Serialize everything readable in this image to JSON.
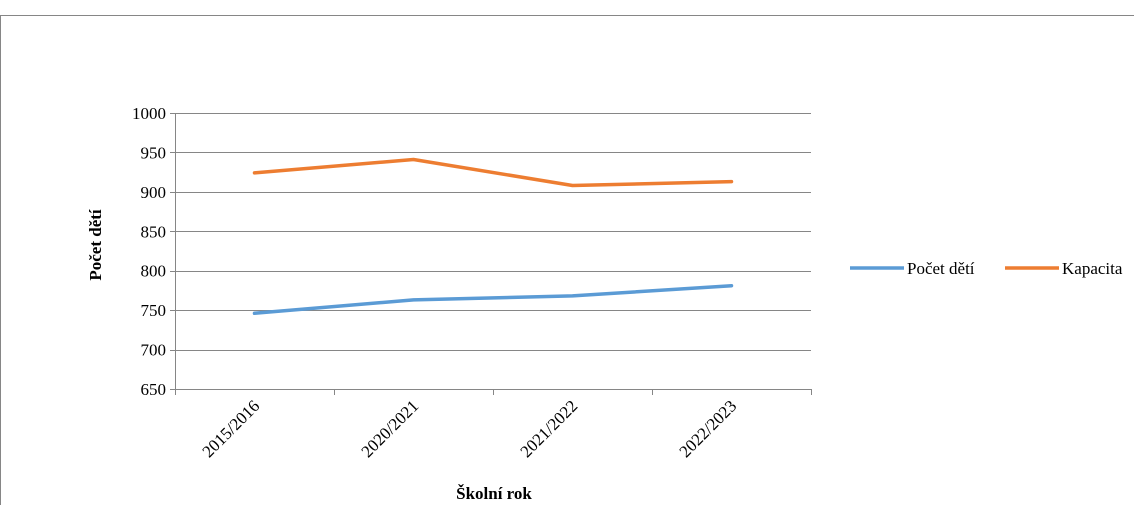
{
  "chart_data": {
    "type": "line",
    "categories": [
      "2015/2016",
      "2020/2021",
      "2021/2022",
      "2022/2023"
    ],
    "series": [
      {
        "name": "Počet dětí",
        "values": [
          746,
          763,
          768,
          781
        ],
        "color": "#5B9BD5"
      },
      {
        "name": "Kapacita",
        "values": [
          924,
          941,
          908,
          913
        ],
        "color": "#ED7D31"
      }
    ],
    "xlabel": "Školní rok",
    "ylabel": "Počet dětí",
    "ylim": [
      650,
      1000
    ],
    "ytick_step": 50,
    "y_ticks": [
      "1000",
      "950",
      "900",
      "850",
      "800",
      "750",
      "700",
      "650"
    ],
    "grid": true,
    "legend_position": "right",
    "gridline_color": "#868686"
  }
}
